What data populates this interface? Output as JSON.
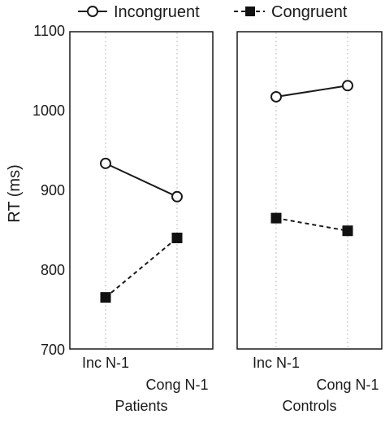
{
  "chart_data": {
    "type": "line",
    "ylabel": "RT (ms)",
    "ylim": [
      700,
      1100
    ],
    "yticks": [
      700,
      800,
      900,
      1000,
      1100
    ],
    "grid": "vertical-dotted",
    "legend": {
      "placement": "top",
      "entries": [
        {
          "name": "Incongruent",
          "marker": "open-circle",
          "line": "solid"
        },
        {
          "name": "Congruent",
          "marker": "filled-square",
          "line": "dashed"
        }
      ]
    },
    "panels": [
      {
        "title": "Patients",
        "categories": [
          "Inc N-1",
          "Cong N-1"
        ],
        "series": [
          {
            "name": "Incongruent",
            "values": [
              934,
              892
            ]
          },
          {
            "name": "Congruent",
            "values": [
              765,
              840
            ]
          }
        ]
      },
      {
        "title": "Controls",
        "categories": [
          "Inc N-1",
          "Cong N-1"
        ],
        "series": [
          {
            "name": "Incongruent",
            "values": [
              1018,
              1032
            ]
          },
          {
            "name": "Congruent",
            "values": [
              865,
              849
            ]
          }
        ]
      }
    ]
  }
}
